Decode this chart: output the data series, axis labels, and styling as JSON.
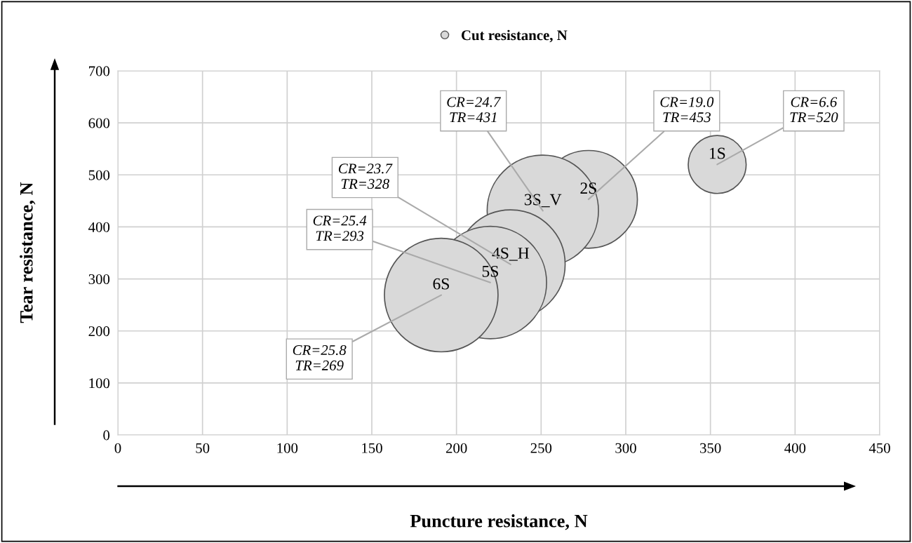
{
  "chart_data": {
    "type": "bubble",
    "xlabel": "Puncture resistance, N",
    "ylabel": "Tear resistance, N",
    "xlim": [
      0,
      450
    ],
    "xticks": [
      0,
      50,
      100,
      150,
      200,
      250,
      300,
      350,
      400,
      450
    ],
    "ylim": [
      0,
      700
    ],
    "yticks": [
      0,
      100,
      200,
      300,
      400,
      500,
      600,
      700
    ],
    "grid": true,
    "legend": "top",
    "series": [
      {
        "name": "Cut resistance, N",
        "color": "#d9d9d9",
        "x": [
          354,
          278,
          251,
          232,
          220,
          191
        ],
        "values": [
          520,
          453,
          431,
          328,
          293,
          269
        ],
        "sizes": [
          0.26,
          0.74,
          0.96,
          0.92,
          0.98,
          1
        ],
        "value_labels": [
          "CR=6.6\nTR=520",
          "CR=19.0\nTR=453",
          "CR=24.7\nTR=431",
          "CR=23.7\nTR=328",
          "CR=25.4\nTR=293",
          "CR=25.8\nTR=269"
        ]
      }
    ],
    "annotations": [
      {
        "text": "1S",
        "x": 354,
        "y": 520
      },
      {
        "text": "2S",
        "x": 278,
        "y": 453
      },
      {
        "text": "3S_V",
        "x": 251,
        "y": 431
      },
      {
        "text": "4S_H",
        "x": 232,
        "y": 328
      },
      {
        "text": "5S",
        "x": 220,
        "y": 293
      },
      {
        "text": "6S",
        "x": 191,
        "y": 269
      }
    ]
  }
}
